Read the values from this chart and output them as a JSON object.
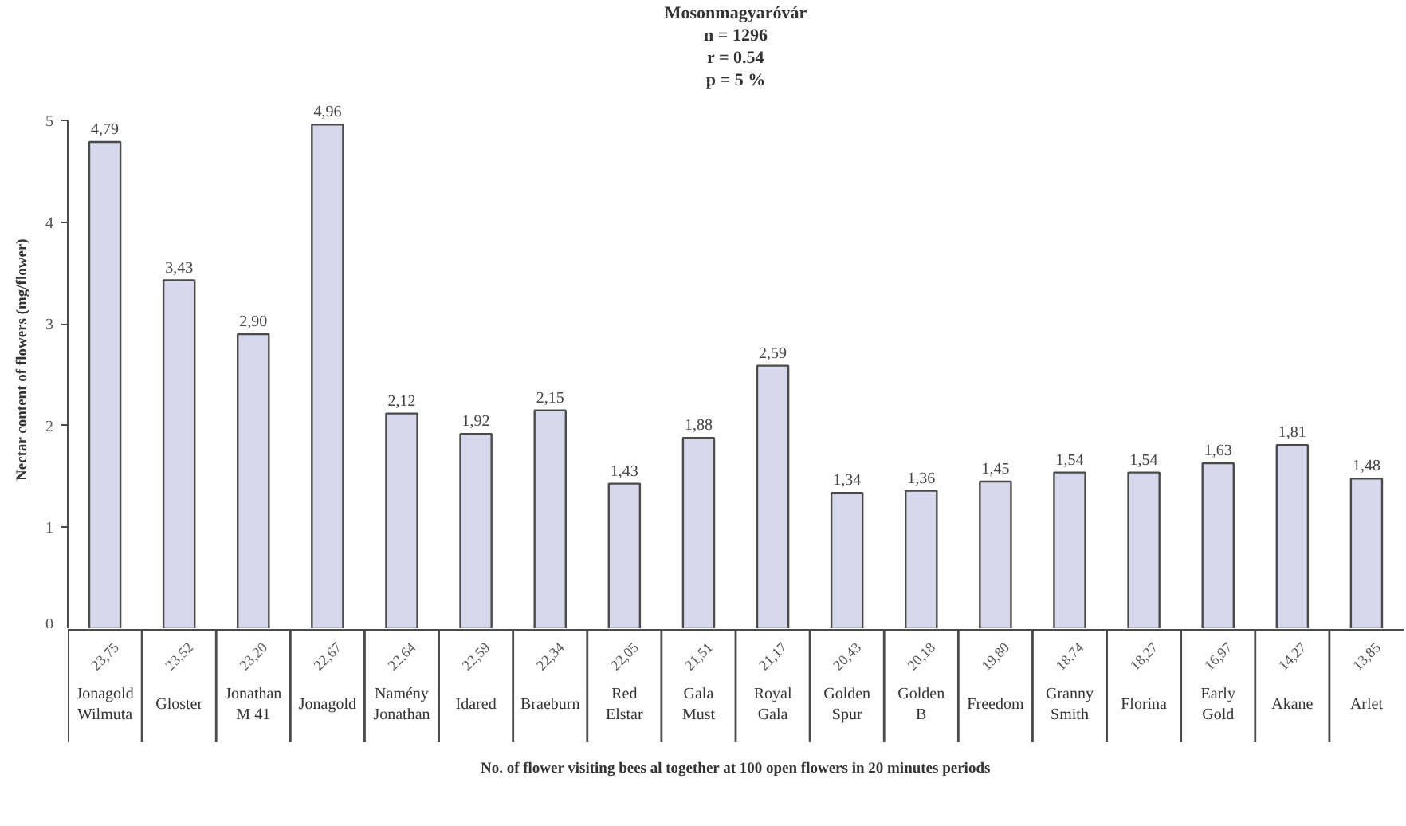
{
  "chart_data": {
    "type": "bar",
    "title": "Mosonmagyaróvár",
    "xlabel": "No. of flower visiting bees al together at 100 open flowers in 20 minutes periods",
    "ylabel": "Nectar content of flowers (mg/flower)",
    "categories": [
      "Jonagold Wilmuta",
      "Gloster",
      "Jonathan M 41",
      "Jonagold",
      "Namény Jonathan",
      "Idared",
      "Braeburn",
      "Red Elstar",
      "Gala Must",
      "Royal Gala",
      "Golden Spur",
      "Golden B",
      "Freedom",
      "Granny Smith",
      "Florina",
      "Early Gold",
      "Akane",
      "Arlet"
    ],
    "values": [
      4.79,
      3.43,
      2.9,
      4.96,
      2.12,
      1.92,
      2.15,
      1.43,
      1.88,
      2.59,
      1.34,
      1.36,
      1.45,
      1.54,
      1.54,
      1.63,
      1.81,
      1.48
    ],
    "value_labels": [
      "4,79",
      "3,43",
      "2,90",
      "4,96",
      "2,12",
      "1,92",
      "2,15",
      "1,43",
      "1,88",
      "2,59",
      "1,34",
      "1,36",
      "1,45",
      "1,54",
      "1,54",
      "1,63",
      "1,81",
      "1,48"
    ],
    "color": "#d8d8ec",
    "ylim": [
      0,
      5
    ],
    "yticks": [
      0,
      1,
      2,
      3,
      4,
      5
    ],
    "annotations": [
      "n = 1296",
      "r = 0.54",
      "p = 5 %",
      "23,75",
      "23,52",
      "23,20",
      "22,67",
      "22,64",
      "22,59",
      "22,34",
      "22,05",
      "21,51",
      "21,17",
      "20,43",
      "20,18",
      "19,80",
      "18,74",
      "18,27",
      "16,97",
      "14,27",
      "13,85"
    ]
  }
}
